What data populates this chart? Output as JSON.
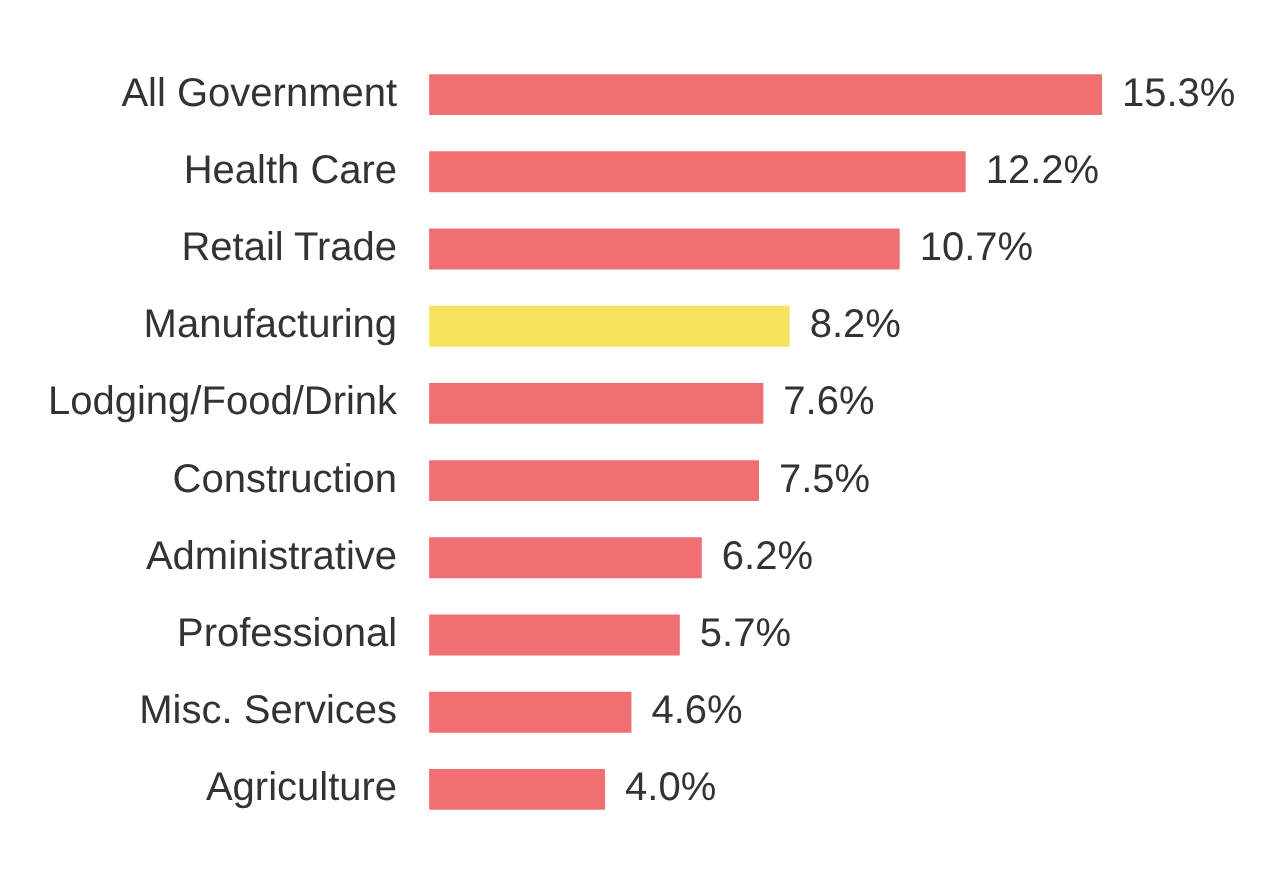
{
  "chart_data": {
    "type": "bar",
    "orientation": "horizontal",
    "categories": [
      "All Government",
      "Health Care",
      "Retail Trade",
      "Manufacturing",
      "Lodging/Food/Drink",
      "Construction",
      "Administrative",
      "Professional",
      "Misc. Services",
      "Agriculture"
    ],
    "values": [
      15.3,
      12.2,
      10.7,
      8.2,
      7.6,
      7.5,
      6.2,
      5.7,
      4.6,
      4.0
    ],
    "colors": [
      "#ef6f73",
      "#ef6f73",
      "#ef6f73",
      "#f6e35e",
      "#ef6f73",
      "#ef6f73",
      "#ef6f73",
      "#ef6f73",
      "#ef6f73",
      "#ef6f73"
    ],
    "value_labels": [
      "15.3%",
      "12.2%",
      "10.7%",
      "8.2%",
      "7.6%",
      "7.5%",
      "6.2%",
      "5.7%",
      "4.6%",
      "4.0%"
    ],
    "grid": false,
    "legend": false
  }
}
